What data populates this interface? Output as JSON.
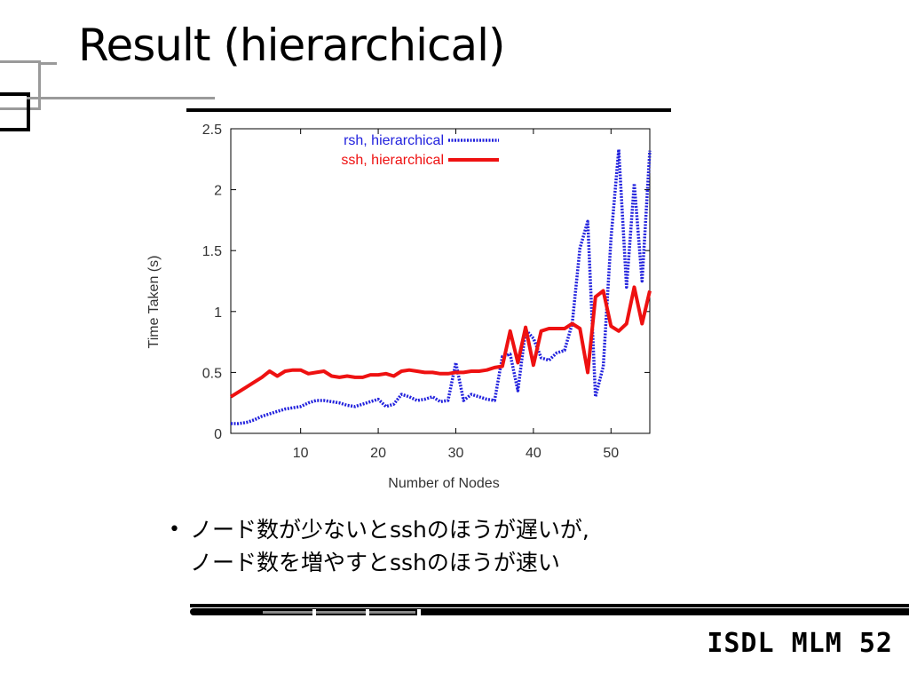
{
  "slide": {
    "title": "Result (hierarchical)",
    "bullet_lines": [
      "ノード数が少ないとsshのほうが遅いが,",
      "ノード数を増やすとsshのほうが速い"
    ],
    "footer": "ISDL MLM 52"
  },
  "colors": {
    "rsh": "#2222dd",
    "ssh": "#ee1111"
  },
  "chart_data": {
    "type": "line",
    "xlabel": "Number of Nodes",
    "ylabel": "Time Taken (s)",
    "xlim": [
      1,
      55
    ],
    "ylim": [
      0,
      2.5
    ],
    "x_ticks": [
      10,
      20,
      30,
      40,
      50
    ],
    "y_ticks": [
      0,
      0.5,
      1,
      1.5,
      2,
      2.5
    ],
    "y_tick_labels": [
      "0",
      "0.5",
      "1",
      "1.5",
      "2",
      "2.5"
    ],
    "legend_position": "top",
    "grid": false,
    "series": [
      {
        "name": "rsh, hierarchical",
        "style": "dotted",
        "x": [
          1,
          2,
          3,
          4,
          5,
          6,
          7,
          8,
          9,
          10,
          11,
          12,
          13,
          14,
          15,
          16,
          17,
          18,
          19,
          20,
          21,
          22,
          23,
          24,
          25,
          26,
          27,
          28,
          29,
          30,
          31,
          32,
          33,
          34,
          35,
          36,
          37,
          38,
          39,
          40,
          41,
          42,
          43,
          44,
          45,
          46,
          47,
          48,
          49,
          50,
          51,
          52,
          53,
          54,
          55
        ],
        "values": [
          0.08,
          0.08,
          0.09,
          0.11,
          0.14,
          0.16,
          0.18,
          0.2,
          0.21,
          0.22,
          0.25,
          0.27,
          0.27,
          0.26,
          0.25,
          0.23,
          0.22,
          0.24,
          0.26,
          0.28,
          0.22,
          0.24,
          0.32,
          0.3,
          0.27,
          0.28,
          0.3,
          0.26,
          0.27,
          0.58,
          0.27,
          0.32,
          0.3,
          0.28,
          0.27,
          0.63,
          0.65,
          0.35,
          0.85,
          0.78,
          0.62,
          0.6,
          0.66,
          0.68,
          0.9,
          1.52,
          1.74,
          0.3,
          0.55,
          1.6,
          2.33,
          1.2,
          2.05,
          1.25,
          2.32
        ]
      },
      {
        "name": "ssh, hierarchical",
        "style": "solid",
        "x": [
          1,
          2,
          3,
          4,
          5,
          6,
          7,
          8,
          9,
          10,
          11,
          12,
          13,
          14,
          15,
          16,
          17,
          18,
          19,
          20,
          21,
          22,
          23,
          24,
          25,
          26,
          27,
          28,
          29,
          30,
          31,
          32,
          33,
          34,
          35,
          36,
          37,
          38,
          39,
          40,
          41,
          42,
          43,
          44,
          45,
          46,
          47,
          48,
          49,
          50,
          51,
          52,
          53,
          54,
          55
        ],
        "values": [
          0.3,
          0.34,
          0.38,
          0.42,
          0.46,
          0.51,
          0.47,
          0.51,
          0.52,
          0.52,
          0.49,
          0.5,
          0.51,
          0.47,
          0.46,
          0.47,
          0.46,
          0.46,
          0.48,
          0.48,
          0.49,
          0.47,
          0.51,
          0.52,
          0.51,
          0.5,
          0.5,
          0.49,
          0.49,
          0.5,
          0.5,
          0.51,
          0.51,
          0.52,
          0.54,
          0.55,
          0.84,
          0.58,
          0.87,
          0.56,
          0.84,
          0.86,
          0.86,
          0.86,
          0.9,
          0.86,
          0.5,
          1.12,
          1.17,
          0.88,
          0.84,
          0.9,
          1.2,
          0.9,
          1.17
        ]
      }
    ]
  }
}
